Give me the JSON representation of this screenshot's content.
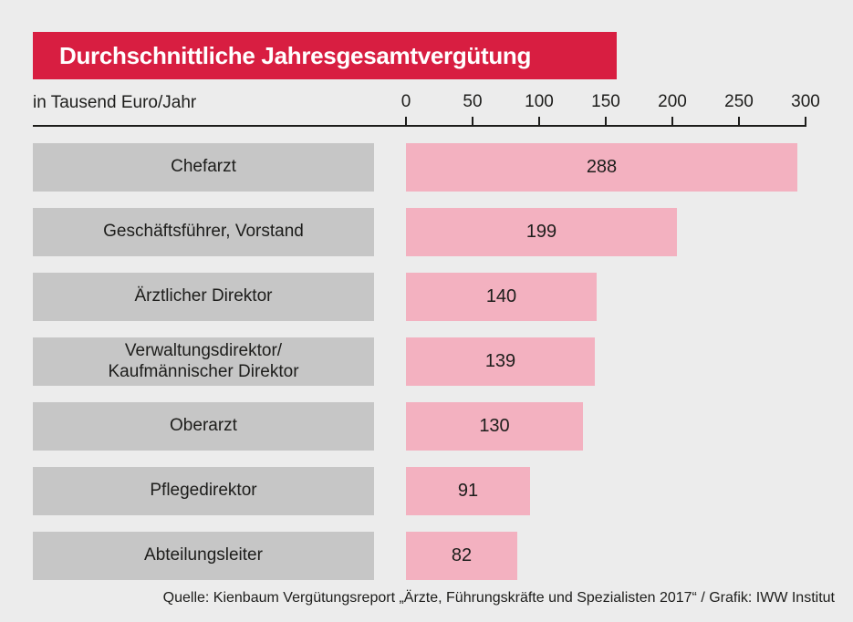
{
  "colors": {
    "background": "#ececec",
    "banner_bg": "#d81e41",
    "banner_text": "#ffffff",
    "bar_fill": "#f3b1c0",
    "label_box_bg": "#c6c6c6",
    "text_dark": "#1d1d1b"
  },
  "header": {
    "title": "Durchschnittliche Jahresgesamtvergütung"
  },
  "axis": {
    "unit_label": "in Tausend Euro/Jahr",
    "ticks": [
      "0",
      "50",
      "100",
      "150",
      "200",
      "250",
      "300"
    ]
  },
  "rows": [
    {
      "label": "Chefarzt",
      "value": "288"
    },
    {
      "label": "Geschäftsführer, Vorstand",
      "value": "199"
    },
    {
      "label": "Ärztlicher Direktor",
      "value": "140"
    },
    {
      "label": "Verwaltungsdirektor/\nKaufmännischer Direktor",
      "value": "139"
    },
    {
      "label": "Oberarzt",
      "value": "130"
    },
    {
      "label": "Pflegedirektor",
      "value": "91"
    },
    {
      "label": "Abteilungsleiter",
      "value": "82"
    }
  ],
  "footer": {
    "source": "Quelle: Kienbaum Vergütungsreport „Ärzte, Führungskräfte und Spezialisten 2017“ / Grafik: IWW Institut"
  },
  "chart_data": {
    "type": "bar",
    "orientation": "horizontal",
    "title": "Durchschnittliche Jahresgesamtvergütung",
    "xlabel": "in Tausend Euro/Jahr",
    "categories": [
      "Chefarzt",
      "Geschäftsführer, Vorstand",
      "Ärztlicher Direktor",
      "Verwaltungsdirektor/Kaufmännischer Direktor",
      "Oberarzt",
      "Pflegedirektor",
      "Abteilungsleiter"
    ],
    "values": [
      288,
      199,
      140,
      139,
      130,
      91,
      82
    ],
    "xlim": [
      0,
      300
    ],
    "xticks": [
      0,
      50,
      100,
      150,
      200,
      250,
      300
    ],
    "grid": false,
    "legend": false,
    "data_labels": "inside-bar-center",
    "source": "Quelle: Kienbaum Vergütungsreport „Ärzte, Führungskräfte und Spezialisten 2017“ / Grafik: IWW Institut"
  }
}
